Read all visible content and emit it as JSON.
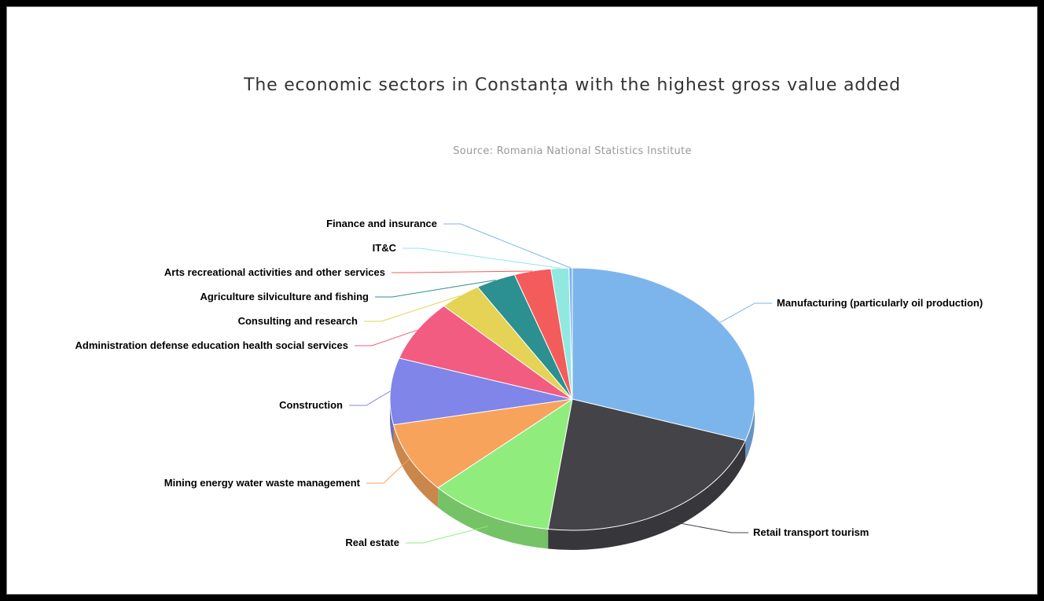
{
  "chart_data": {
    "type": "pie",
    "title": "The economic sectors in Constanța with the highest gross value added",
    "subtitle": "Source: Romania National Statistics Institute",
    "slices": [
      {
        "label": "Manufacturing (particularly oil production)",
        "value": 30.5,
        "color": "#7cb5ec"
      },
      {
        "label": "Retail transport tourism",
        "value": 22.3,
        "color": "#434348"
      },
      {
        "label": "Real estate",
        "value": 11.2,
        "color": "#90ed7d"
      },
      {
        "label": "Mining energy water waste management",
        "value": 8.8,
        "color": "#f7a35c"
      },
      {
        "label": "Construction",
        "value": 8.3,
        "color": "#8085e9"
      },
      {
        "label": "Administration defense education health social services",
        "value": 7.6,
        "color": "#f15c80"
      },
      {
        "label": "Consulting and research",
        "value": 3.8,
        "color": "#e4d354"
      },
      {
        "label": "Agriculture silviculture and fishing",
        "value": 3.6,
        "color": "#2b908f"
      },
      {
        "label": "Arts recreational activities and other services",
        "value": 3.3,
        "color": "#f45b5b"
      },
      {
        "label": "IT&C",
        "value": 1.6,
        "color": "#91e8e1"
      },
      {
        "label": "Finance and insurance",
        "value": 0.3,
        "color": "#7cb5ec"
      }
    ],
    "legend": "none",
    "style": "3d"
  }
}
